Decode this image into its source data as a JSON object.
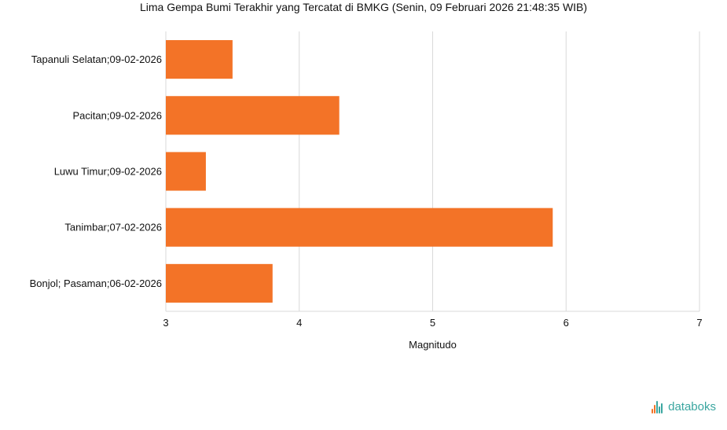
{
  "chart_data": {
    "type": "bar",
    "orientation": "horizontal",
    "title": "Lima Gempa Bumi Terakhir yang Tercatat di BMKG (Senin, 09 Februari 2026 21:48:35 WIB)",
    "xlabel": "Magnitudo",
    "ylabel": "",
    "categories": [
      "Tapanuli Selatan;09-02-2026",
      "Pacitan;09-02-2026",
      "Luwu Timur;09-02-2026",
      "Tanimbar;07-02-2026",
      "Bonjol; Pasaman;06-02-2026"
    ],
    "values": [
      3.5,
      4.3,
      3.3,
      5.9,
      3.8
    ],
    "xlim": [
      3,
      7
    ],
    "xticks": [
      3,
      4,
      5,
      6,
      7
    ],
    "grid": true,
    "bar_color": "#f37327",
    "grid_color": "#d9d9d9",
    "legend": "none"
  },
  "brand": {
    "name": "databoks",
    "color": "#3aa6a0",
    "icon": "databoks-bars-icon"
  }
}
